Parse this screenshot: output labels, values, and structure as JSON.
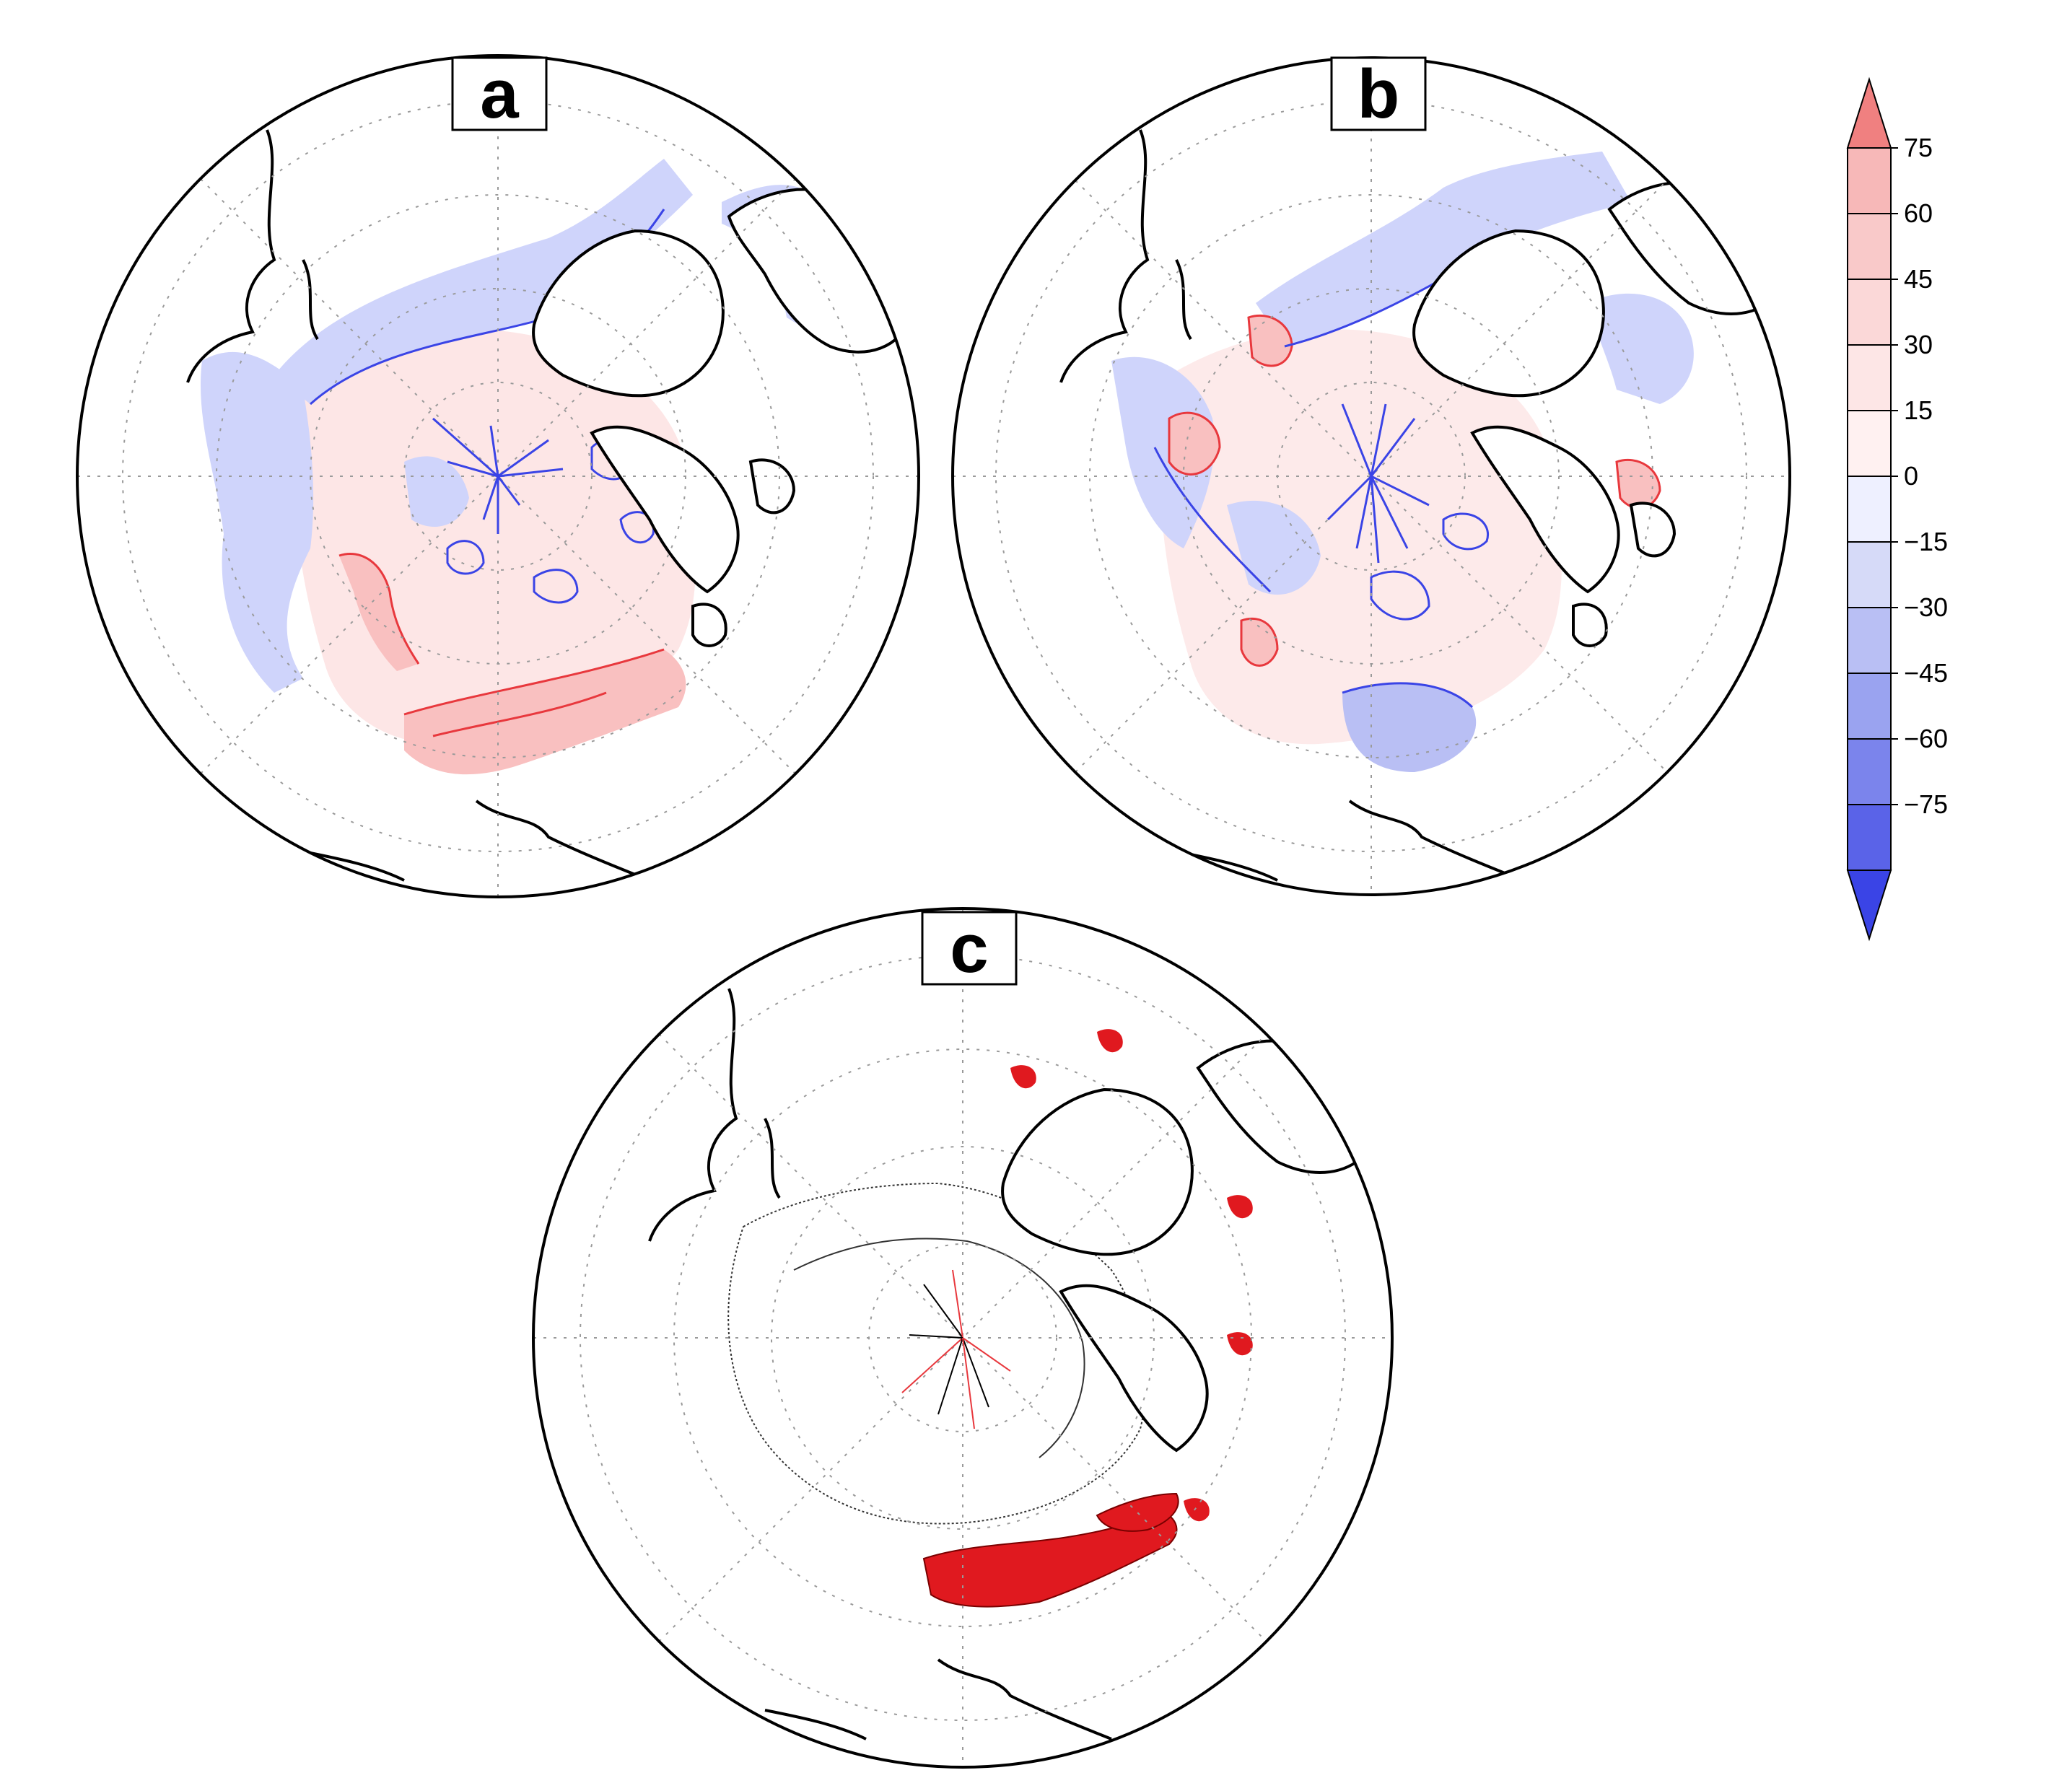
{
  "panels": [
    {
      "label": "a"
    },
    {
      "label": "b"
    },
    {
      "label": "c"
    }
  ],
  "colorbar": {
    "ticks": [
      "75",
      "60",
      "45",
      "30",
      "15",
      "0",
      "−15",
      "−30",
      "−45",
      "−60",
      "−75"
    ],
    "colors": [
      "#f7b8b8",
      "#f9c9c9",
      "#fbd8d8",
      "#fde6e6",
      "#fff1f1",
      "#eef0ff",
      "#d6daf8",
      "#b9bff4",
      "#9aa3f0",
      "#7b84ec",
      "#5a63e8"
    ],
    "arrow_top_color": "#f08080",
    "arrow_bottom_color": "#3a44e6"
  },
  "colors": {
    "land_outline": "#000000",
    "positive": "#e8383d",
    "negative": "#3a44e6",
    "significant_fill": "#e0191f",
    "grid": "#9a9a9a"
  }
}
